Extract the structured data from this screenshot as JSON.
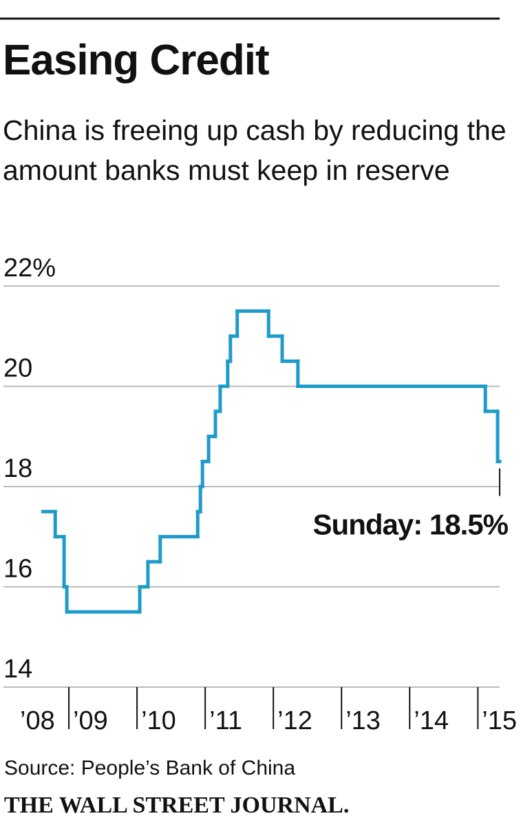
{
  "chart_data": {
    "type": "line",
    "step": true,
    "title": "Easing Credit",
    "subtitle": "China is freeing up cash by reducing the amount banks must keep in reserve",
    "source": "Source: People’s Bank of China",
    "brand": "THE WALL STREET JOURNAL.",
    "annotation": "Sunday: 18.5%",
    "color": "#1f9bcb",
    "grid": true,
    "x": [
      2008.62,
      2008.8,
      2008.93,
      2008.97,
      2010.04,
      2010.16,
      2010.34,
      2010.89,
      2010.93,
      2010.96,
      2011.05,
      2011.15,
      2011.22,
      2011.33,
      2011.37,
      2011.47,
      2011.93,
      2012.13,
      2012.36,
      2015.11,
      2015.29
    ],
    "values": [
      17.5,
      17,
      16,
      15.5,
      16,
      16.5,
      17,
      17.5,
      18,
      18.5,
      19,
      19.5,
      20,
      20.5,
      21,
      21.5,
      21,
      20.5,
      20,
      19.5,
      18.5
    ],
    "xlim": [
      2008,
      2015.32
    ],
    "xticks": [
      {
        "value": 2008,
        "label": "’08"
      },
      {
        "value": 2009,
        "label": "’09"
      },
      {
        "value": 2010,
        "label": "’10"
      },
      {
        "value": 2011,
        "label": "’11"
      },
      {
        "value": 2012,
        "label": "’12"
      },
      {
        "value": 2013,
        "label": "’13"
      },
      {
        "value": 2014,
        "label": "’14"
      },
      {
        "value": 2015,
        "label": "’15"
      }
    ],
    "ylim": [
      14,
      22
    ],
    "yticks": [
      14,
      16,
      18,
      20,
      {
        "value": 22,
        "label": "22%"
      }
    ]
  }
}
